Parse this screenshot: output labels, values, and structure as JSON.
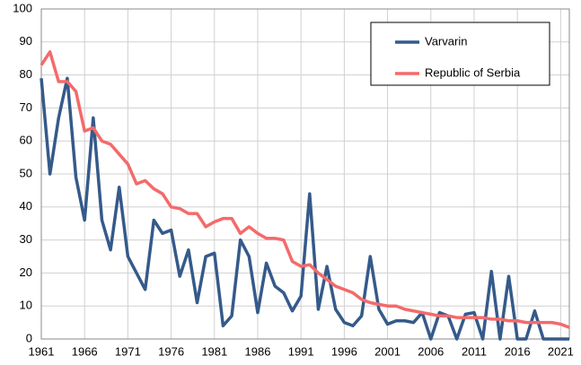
{
  "chart_data": {
    "type": "line",
    "x": [
      1961,
      1962,
      1963,
      1964,
      1965,
      1966,
      1967,
      1968,
      1969,
      1970,
      1971,
      1972,
      1973,
      1974,
      1975,
      1976,
      1977,
      1978,
      1979,
      1980,
      1981,
      1982,
      1983,
      1984,
      1985,
      1986,
      1987,
      1988,
      1989,
      1990,
      1991,
      1992,
      1993,
      1994,
      1995,
      1996,
      1997,
      1998,
      1999,
      2000,
      2001,
      2002,
      2003,
      2004,
      2005,
      2006,
      2007,
      2008,
      2009,
      2010,
      2011,
      2012,
      2013,
      2014,
      2015,
      2016,
      2017,
      2018,
      2019,
      2020,
      2021,
      2022
    ],
    "series": [
      {
        "name": "Varvarin",
        "color": "#355a8a",
        "values": [
          79,
          50,
          67,
          79,
          49,
          36,
          67,
          36,
          27,
          46,
          25,
          20,
          15,
          36,
          32,
          33,
          19,
          27,
          11,
          25,
          26,
          4,
          7,
          30,
          25,
          8,
          23,
          16,
          14,
          8.5,
          13,
          44,
          9,
          22,
          9,
          5,
          4,
          7,
          25,
          9,
          4.5,
          5.5,
          5.5,
          5,
          8,
          0,
          8,
          7,
          0,
          7.5,
          8,
          0,
          20.5,
          0,
          19,
          0,
          0,
          8.5,
          0,
          0,
          0,
          0
        ]
      },
      {
        "name": "Republic of Serbia",
        "color": "#f46a6a",
        "values": [
          83,
          87,
          78,
          78,
          75,
          63,
          64,
          60,
          59,
          56,
          53,
          47,
          48,
          45.5,
          44,
          40,
          39.5,
          38,
          38,
          34,
          35.5,
          36.5,
          36.5,
          32,
          34,
          32,
          30.5,
          30.5,
          30,
          23.5,
          22,
          22.5,
          20,
          18,
          16,
          15,
          14,
          12,
          11,
          10.5,
          10,
          10,
          9,
          8.5,
          8,
          7.5,
          7,
          7,
          6.5,
          6.5,
          6.5,
          6.5,
          6,
          6,
          5.5,
          5.5,
          5,
          5,
          5,
          5,
          4.5,
          3.5
        ]
      }
    ],
    "xlim": [
      1961,
      2022
    ],
    "xticks": [
      1961,
      1966,
      1971,
      1976,
      1981,
      1986,
      1991,
      1996,
      2001,
      2006,
      2011,
      2016,
      2021
    ],
    "ylim": [
      0,
      100
    ],
    "yticks": [
      0,
      10,
      20,
      30,
      40,
      50,
      60,
      70,
      80,
      90,
      100
    ],
    "grid": true
  }
}
